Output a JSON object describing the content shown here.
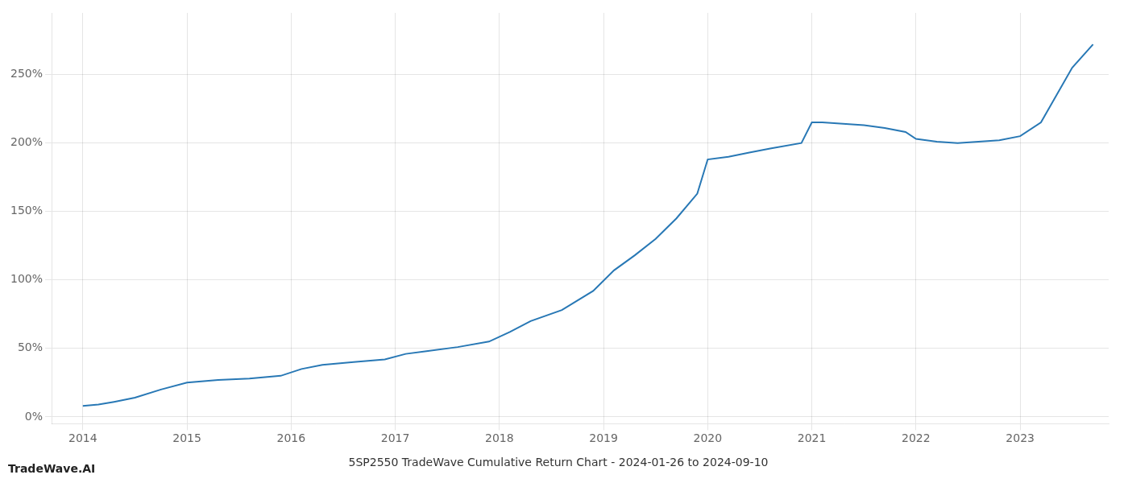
{
  "chart_data": {
    "type": "line",
    "title": "5SP2550 TradeWave Cumulative Return Chart - 2024-01-26 to 2024-09-10",
    "annotations": [
      "TradeWave.AI"
    ],
    "x": [
      2014.0,
      2014.15,
      2014.3,
      2014.5,
      2014.75,
      2015.0,
      2015.3,
      2015.6,
      2015.9,
      2016.1,
      2016.3,
      2016.6,
      2016.9,
      2017.1,
      2017.3,
      2017.6,
      2017.9,
      2018.1,
      2018.3,
      2018.6,
      2018.9,
      2019.1,
      2019.3,
      2019.5,
      2019.7,
      2019.9,
      2020.0,
      2020.2,
      2020.4,
      2020.6,
      2020.9,
      2021.0,
      2021.1,
      2021.3,
      2021.5,
      2021.7,
      2021.9,
      2022.0,
      2022.2,
      2022.4,
      2022.6,
      2022.8,
      2023.0,
      2023.2,
      2023.5,
      2023.7
    ],
    "values": [
      8,
      9,
      11,
      14,
      20,
      25,
      27,
      28,
      30,
      35,
      38,
      40,
      42,
      46,
      48,
      51,
      55,
      62,
      70,
      78,
      92,
      107,
      118,
      130,
      145,
      163,
      188,
      190,
      193,
      196,
      200,
      215,
      215,
      214,
      213,
      211,
      208,
      203,
      201,
      200,
      201,
      202,
      205,
      215,
      255,
      272
    ],
    "color": "#2878b5",
    "xlim": [
      2013.7,
      2023.85
    ],
    "xticks": [
      2014,
      2015,
      2016,
      2017,
      2018,
      2019,
      2020,
      2021,
      2022,
      2023
    ],
    "ylim": [
      -5,
      295
    ],
    "yticks": [
      {
        "value": 0,
        "label": "0%"
      },
      {
        "value": 50,
        "label": "50%"
      },
      {
        "value": 100,
        "label": "100%"
      },
      {
        "value": 150,
        "label": "150%"
      },
      {
        "value": 200,
        "label": "200%"
      },
      {
        "value": 250,
        "label": "250%"
      }
    ],
    "grid": true
  }
}
